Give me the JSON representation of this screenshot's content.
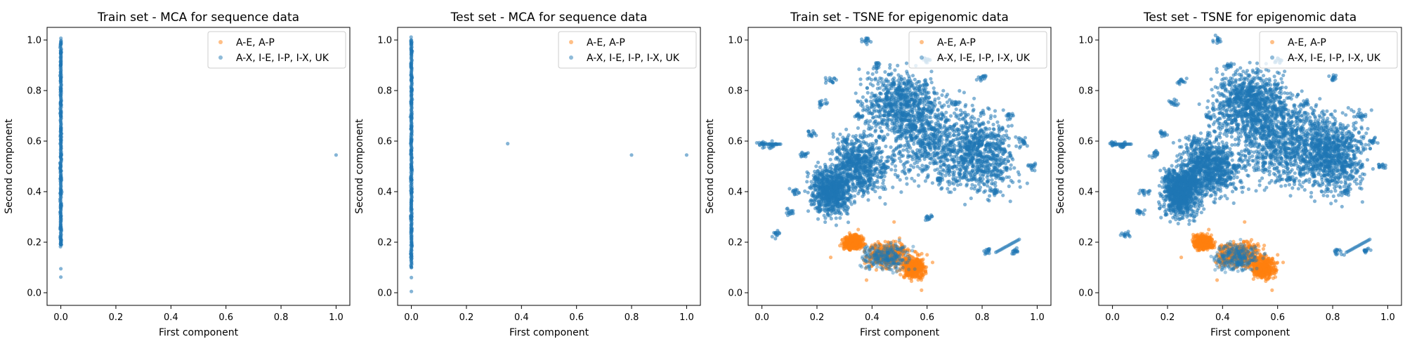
{
  "chart_data": [
    {
      "type": "scatter",
      "title": "Train set - MCA for sequence data",
      "xlabel": "First component",
      "ylabel": "Second component",
      "xlim": [
        -0.05,
        1.05
      ],
      "ylim": [
        -0.05,
        1.05
      ],
      "xticks": [
        0.0,
        0.2,
        0.4,
        0.6,
        0.8,
        1.0
      ],
      "yticks": [
        0.0,
        0.2,
        0.4,
        0.6,
        0.8,
        1.0
      ],
      "tick_labels": [
        "0.0",
        "0.2",
        "0.4",
        "0.6",
        "0.8",
        "1.0"
      ],
      "grid": false,
      "legend_position": "top-right",
      "series": [
        {
          "name": "A-X, I-E, I-P, I-X, UK",
          "color": "#1f77b4",
          "points": [
            [
              0.0,
              0.99
            ],
            [
              0.0,
              0.95
            ],
            [
              0.0,
              0.9
            ],
            [
              0.0,
              0.85
            ],
            [
              0.0,
              0.8
            ],
            [
              0.0,
              0.75
            ],
            [
              0.0,
              0.7
            ],
            [
              0.0,
              0.65
            ],
            [
              0.0,
              0.6
            ],
            [
              0.0,
              0.55
            ],
            [
              0.0,
              0.5
            ],
            [
              0.0,
              0.45
            ],
            [
              0.0,
              0.4
            ],
            [
              0.0,
              0.35
            ],
            [
              0.0,
              0.3
            ],
            [
              0.0,
              0.25
            ],
            [
              0.0,
              0.2
            ],
            [
              0.0,
              0.19
            ],
            [
              0.0,
              0.095
            ],
            [
              0.0,
              0.062
            ],
            [
              1.0,
              0.545
            ]
          ]
        },
        {
          "name": "A-E, A-P",
          "color": "#ff7f0e",
          "points": []
        }
      ]
    },
    {
      "type": "scatter",
      "title": "Test set - MCA for sequence data",
      "xlabel": "First component",
      "ylabel": "Second component",
      "xlim": [
        -0.05,
        1.05
      ],
      "ylim": [
        -0.05,
        1.05
      ],
      "xticks": [
        0.0,
        0.2,
        0.4,
        0.6,
        0.8,
        1.0
      ],
      "yticks": [
        0.0,
        0.2,
        0.4,
        0.6,
        0.8,
        1.0
      ],
      "tick_labels": [
        "0.0",
        "0.2",
        "0.4",
        "0.6",
        "0.8",
        "1.0"
      ],
      "grid": false,
      "legend_position": "top-right",
      "series": [
        {
          "name": "A-X, I-E, I-P, I-X, UK",
          "color": "#1f77b4",
          "points": [
            [
              0.0,
              1.0
            ],
            [
              0.0,
              0.95
            ],
            [
              0.0,
              0.9
            ],
            [
              0.0,
              0.85
            ],
            [
              0.0,
              0.8
            ],
            [
              0.0,
              0.75
            ],
            [
              0.0,
              0.7
            ],
            [
              0.0,
              0.65
            ],
            [
              0.0,
              0.6
            ],
            [
              0.0,
              0.55
            ],
            [
              0.0,
              0.5
            ],
            [
              0.0,
              0.45
            ],
            [
              0.0,
              0.4
            ],
            [
              0.0,
              0.35
            ],
            [
              0.0,
              0.3
            ],
            [
              0.0,
              0.25
            ],
            [
              0.0,
              0.2
            ],
            [
              0.0,
              0.15
            ],
            [
              0.0,
              0.1
            ],
            [
              0.0,
              0.06
            ],
            [
              0.0,
              0.005
            ],
            [
              0.35,
              0.59
            ],
            [
              0.8,
              0.545
            ],
            [
              1.0,
              0.545
            ]
          ]
        },
        {
          "name": "A-E, A-P",
          "color": "#ff7f0e",
          "points": []
        }
      ]
    },
    {
      "type": "scatter",
      "title": "Train set - TSNE for epigenomic data",
      "xlabel": "First component",
      "ylabel": "Second component",
      "xlim": [
        -0.05,
        1.05
      ],
      "ylim": [
        -0.05,
        1.05
      ],
      "xticks": [
        0.0,
        0.2,
        0.4,
        0.6,
        0.8,
        1.0
      ],
      "yticks": [
        0.0,
        0.2,
        0.4,
        0.6,
        0.8,
        1.0
      ],
      "tick_labels": [
        "0.0",
        "0.2",
        "0.4",
        "0.6",
        "0.8",
        "1.0"
      ],
      "grid": false,
      "legend_position": "top-right",
      "series": [
        {
          "name": "A-X, I-E, I-P, I-X, UK",
          "color": "#1f77b4",
          "points": [
            [
              0.0,
              0.588
            ],
            [
              0.04,
              0.585
            ],
            [
              0.05,
              0.232
            ],
            [
              0.1,
              0.32
            ],
            [
              0.12,
              0.4
            ],
            [
              0.15,
              0.55
            ],
            [
              0.18,
              0.63
            ],
            [
              0.2,
              0.45
            ],
            [
              0.22,
              0.75
            ],
            [
              0.25,
              0.84
            ],
            [
              0.3,
              0.6
            ],
            [
              0.35,
              0.7
            ],
            [
              0.38,
              1.0
            ],
            [
              0.42,
              0.9
            ],
            [
              0.45,
              0.5
            ],
            [
              0.5,
              0.8
            ],
            [
              0.55,
              0.66
            ],
            [
              0.6,
              0.92
            ],
            [
              0.65,
              0.45
            ],
            [
              0.7,
              0.75
            ],
            [
              0.75,
              0.58
            ],
            [
              0.8,
              0.85
            ],
            [
              0.85,
              0.4
            ],
            [
              0.9,
              0.7
            ],
            [
              0.95,
              0.6
            ],
            [
              0.98,
              0.5
            ],
            [
              0.92,
              0.165
            ],
            [
              0.82,
              0.165
            ],
            [
              0.6,
              0.3
            ]
          ]
        },
        {
          "name": "A-E, A-P",
          "color": "#ff7f0e",
          "points": [
            [
              0.3,
              0.2
            ],
            [
              0.35,
              0.25
            ],
            [
              0.4,
              0.15
            ],
            [
              0.45,
              0.1
            ],
            [
              0.5,
              0.2
            ],
            [
              0.55,
              0.07
            ],
            [
              0.58,
              0.01
            ],
            [
              0.6,
              0.15
            ],
            [
              0.62,
              0.12
            ],
            [
              0.38,
              0.05
            ],
            [
              0.25,
              0.14
            ],
            [
              0.48,
              0.28
            ]
          ]
        }
      ]
    },
    {
      "type": "scatter",
      "title": "Test set - TSNE for epigenomic data",
      "xlabel": "First component",
      "ylabel": "Second component",
      "xlim": [
        -0.05,
        1.05
      ],
      "ylim": [
        -0.05,
        1.05
      ],
      "xticks": [
        0.0,
        0.2,
        0.4,
        0.6,
        0.8,
        1.0
      ],
      "yticks": [
        0.0,
        0.2,
        0.4,
        0.6,
        0.8,
        1.0
      ],
      "tick_labels": [
        "0.0",
        "0.2",
        "0.4",
        "0.6",
        "0.8",
        "1.0"
      ],
      "grid": false,
      "legend_position": "top-right",
      "series": [
        {
          "name": "A-X, I-E, I-P, I-X, UK",
          "color": "#1f77b4",
          "points": [
            [
              0.0,
              0.588
            ],
            [
              0.04,
              0.585
            ],
            [
              0.05,
              0.232
            ],
            [
              0.1,
              0.32
            ],
            [
              0.12,
              0.4
            ],
            [
              0.15,
              0.55
            ],
            [
              0.18,
              0.63
            ],
            [
              0.2,
              0.45
            ],
            [
              0.22,
              0.75
            ],
            [
              0.25,
              0.84
            ],
            [
              0.3,
              0.6
            ],
            [
              0.35,
              0.7
            ],
            [
              0.38,
              1.0
            ],
            [
              0.42,
              0.9
            ],
            [
              0.45,
              0.5
            ],
            [
              0.5,
              0.8
            ],
            [
              0.55,
              0.66
            ],
            [
              0.6,
              0.92
            ],
            [
              0.65,
              0.45
            ],
            [
              0.7,
              0.75
            ],
            [
              0.75,
              0.58
            ],
            [
              0.8,
              0.85
            ],
            [
              0.85,
              0.4
            ],
            [
              0.9,
              0.7
            ],
            [
              0.95,
              0.6
            ],
            [
              0.98,
              0.5
            ],
            [
              0.92,
              0.165
            ],
            [
              0.82,
              0.165
            ]
          ]
        },
        {
          "name": "A-E, A-P",
          "color": "#ff7f0e",
          "points": [
            [
              0.3,
              0.2
            ],
            [
              0.35,
              0.25
            ],
            [
              0.4,
              0.15
            ],
            [
              0.45,
              0.1
            ],
            [
              0.5,
              0.2
            ],
            [
              0.55,
              0.07
            ],
            [
              0.58,
              0.01
            ],
            [
              0.6,
              0.15
            ],
            [
              0.62,
              0.12
            ],
            [
              0.38,
              0.05
            ],
            [
              0.25,
              0.14
            ],
            [
              0.48,
              0.28
            ]
          ]
        }
      ]
    }
  ]
}
